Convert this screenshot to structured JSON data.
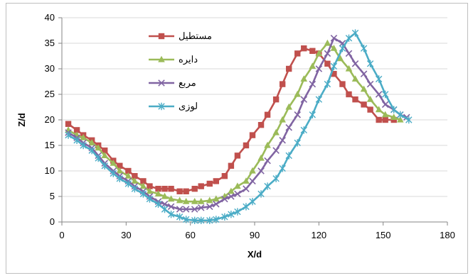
{
  "chart_data": {
    "type": "line",
    "xlabel": "X/d",
    "ylabel": "Z/d",
    "xlim": [
      0,
      180
    ],
    "ylim": [
      0,
      40
    ],
    "xticks": [
      0,
      30,
      60,
      90,
      120,
      150,
      180
    ],
    "yticks": [
      0,
      5,
      10,
      15,
      20,
      25,
      30,
      35,
      40
    ],
    "grid": "horizontal",
    "legend_position": "top-left",
    "series": [
      {
        "name": "مستطیل",
        "color": "#c0504d",
        "marker": "square",
        "x": [
          3,
          7,
          10,
          14,
          17,
          20,
          24,
          27,
          31,
          34,
          38,
          41,
          45,
          48,
          51,
          55,
          58,
          62,
          65,
          69,
          72,
          76,
          79,
          82,
          86,
          89,
          93,
          96,
          100,
          103,
          106,
          110,
          113,
          117,
          120,
          124,
          127,
          131,
          134,
          137,
          141,
          144,
          148,
          151,
          155
        ],
        "y": [
          19.2,
          18,
          17,
          16,
          15,
          14,
          12,
          11,
          10,
          9,
          8,
          7,
          6.5,
          6.5,
          6.5,
          6,
          6,
          6.5,
          7,
          7.5,
          8,
          9,
          11,
          13,
          15,
          17,
          19,
          21,
          24,
          27,
          30,
          33,
          34,
          33.5,
          33,
          31,
          29,
          27,
          25,
          24,
          23,
          22,
          20,
          20,
          20
        ]
      },
      {
        "name": "دایره",
        "color": "#9bbb59",
        "marker": "triangle",
        "x": [
          3,
          7,
          10,
          14,
          17,
          20,
          24,
          27,
          31,
          34,
          38,
          41,
          45,
          48,
          51,
          55,
          58,
          62,
          65,
          69,
          72,
          76,
          79,
          82,
          86,
          89,
          93,
          96,
          100,
          103,
          106,
          110,
          113,
          117,
          120,
          124,
          127,
          130,
          134,
          137,
          141,
          144,
          148,
          151,
          155,
          158
        ],
        "y": [
          18,
          17,
          16.5,
          15.5,
          14.5,
          13,
          11.5,
          10,
          9,
          8,
          7,
          6,
          5.5,
          5,
          4.5,
          4.2,
          4,
          4,
          4,
          4.2,
          4.5,
          5,
          6,
          7,
          8,
          10,
          12.5,
          15,
          17.5,
          20,
          22.5,
          25,
          28,
          30.5,
          33,
          35,
          34,
          32,
          30,
          28,
          26,
          24,
          22,
          21,
          20.5,
          20
        ]
      },
      {
        "name": "مربع",
        "color": "#8064a2",
        "marker": "x",
        "x": [
          3,
          7,
          10,
          14,
          17,
          20,
          24,
          27,
          31,
          34,
          38,
          41,
          45,
          48,
          51,
          55,
          58,
          62,
          65,
          69,
          72,
          76,
          79,
          82,
          86,
          89,
          93,
          96,
          100,
          103,
          106,
          110,
          113,
          117,
          120,
          124,
          127,
          131,
          134,
          137,
          141,
          144,
          148,
          151,
          155,
          158,
          161
        ],
        "y": [
          17.5,
          16.5,
          15.5,
          14.5,
          13,
          11.5,
          10,
          9,
          8,
          7,
          6,
          5,
          4,
          3.5,
          3,
          2.5,
          2.5,
          2.5,
          2.8,
          3,
          3.5,
          4.5,
          5,
          5.5,
          6.5,
          8,
          10,
          12,
          14,
          16,
          18.5,
          21,
          24,
          27,
          30,
          33,
          36,
          35,
          33,
          31,
          29,
          27,
          25,
          23,
          22,
          21,
          20.5
        ]
      },
      {
        "name": "لوزی",
        "color": "#4bacc6",
        "marker": "star",
        "x": [
          3,
          7,
          10,
          14,
          17,
          20,
          24,
          27,
          31,
          34,
          38,
          41,
          45,
          48,
          51,
          55,
          58,
          62,
          65,
          69,
          72,
          76,
          79,
          82,
          86,
          89,
          93,
          96,
          100,
          103,
          106,
          110,
          113,
          117,
          120,
          124,
          127,
          131,
          134,
          137,
          141,
          144,
          148,
          151,
          155,
          158,
          162
        ],
        "y": [
          17,
          16,
          15,
          14,
          12.5,
          11,
          9.5,
          8.5,
          7.5,
          6.5,
          5.5,
          4.5,
          3.5,
          2.5,
          1.5,
          1,
          0.5,
          0.3,
          0.3,
          0.3,
          0.5,
          1,
          1.5,
          2,
          3,
          4,
          5.5,
          7,
          8.5,
          10.5,
          13,
          15.5,
          18,
          21,
          24,
          27,
          30.5,
          34,
          36,
          37,
          34,
          31,
          28,
          25,
          22,
          21,
          20
        ]
      }
    ]
  }
}
